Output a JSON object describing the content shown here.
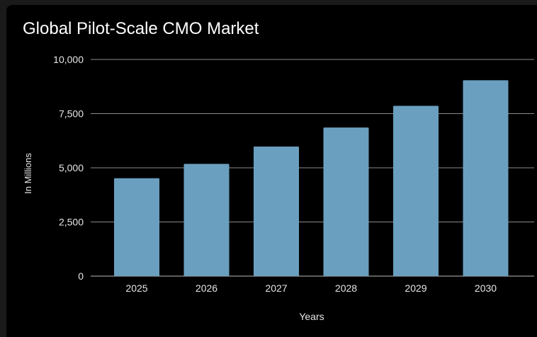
{
  "chart_data": {
    "type": "bar",
    "title": "Global Pilot-Scale CMO Market",
    "xlabel": "Years",
    "ylabel": "In Millions",
    "categories": [
      "2025",
      "2026",
      "2027",
      "2028",
      "2029",
      "2030"
    ],
    "values": [
      4520,
      5180,
      5980,
      6860,
      7860,
      9040
    ],
    "ylim": [
      0,
      10000
    ],
    "yticks": [
      {
        "value": 0,
        "label": "0"
      },
      {
        "value": 2500,
        "label": "2,500"
      },
      {
        "value": 5000,
        "label": "5,000"
      },
      {
        "value": 7500,
        "label": "7,500"
      },
      {
        "value": 10000,
        "label": "10,000"
      }
    ],
    "grid": true,
    "legend": "none",
    "colors": {
      "bar": "#6a9fbf",
      "background": "#000000",
      "grid": "#8a8a8a",
      "text": "#e6e6e6"
    }
  }
}
